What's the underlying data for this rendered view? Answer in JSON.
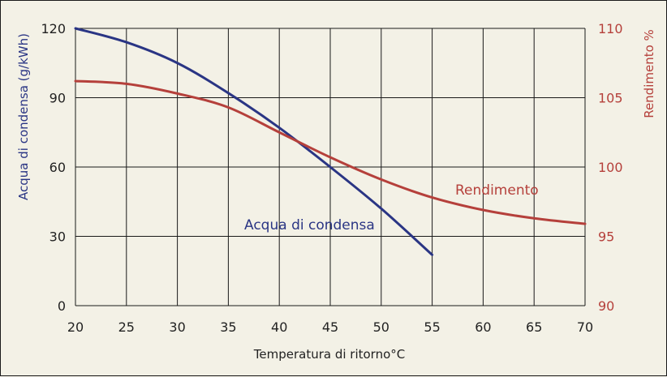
{
  "chart_data": {
    "type": "line",
    "xlabel": "Temperatura di ritorno°C",
    "ylabel_left": "Acqua di condensa (g/kWh)",
    "ylabel_right": "Rendimento %",
    "xlim": [
      20,
      70
    ],
    "ylim_left": [
      0,
      120
    ],
    "ylim_right": [
      90,
      110
    ],
    "x_ticks": [
      20,
      25,
      30,
      35,
      40,
      45,
      50,
      55,
      60,
      65,
      70
    ],
    "y_left_ticks": [
      0,
      30,
      60,
      90,
      120
    ],
    "y_right_ticks": [
      90,
      95,
      100,
      105,
      110
    ],
    "grid": true,
    "series": [
      {
        "name": "Acqua di condensa",
        "axis": "left",
        "color": "#2a3584",
        "x": [
          20,
          25,
          30,
          35,
          40,
          45,
          50,
          55
        ],
        "y": [
          120,
          114,
          105,
          92,
          77,
          60,
          42,
          22
        ]
      },
      {
        "name": "Rendimento",
        "axis": "right",
        "color": "#b5403b",
        "x": [
          20,
          25,
          30,
          35,
          40,
          45,
          50,
          55,
          60,
          65,
          70
        ],
        "y": [
          106.2,
          106.0,
          105.3,
          104.3,
          102.5,
          100.7,
          99.1,
          97.8,
          96.9,
          96.3,
          95.9
        ]
      }
    ]
  }
}
